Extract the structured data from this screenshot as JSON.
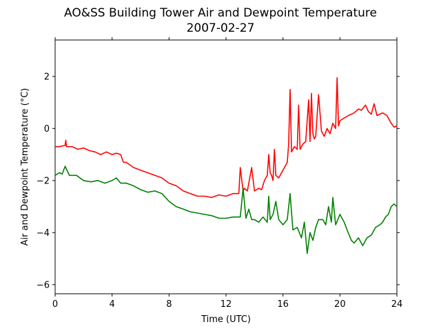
{
  "chart_data": {
    "type": "line",
    "title": "AO&SS Building Tower Air and Dewpoint Temperature",
    "subtitle": "2007-02-27",
    "xlabel": "Time (UTC)",
    "ylabel": "Air and Dewpoint Temperature (°C)",
    "xlim": [
      0,
      24
    ],
    "ylim": [
      -6.35,
      3.4
    ],
    "xticks": [
      0,
      4,
      8,
      12,
      16,
      20,
      24
    ],
    "yticks": [
      -6,
      -4,
      -2,
      0,
      2
    ],
    "ytick_labels": [
      "−6",
      "−4",
      "−2",
      "0",
      "2"
    ],
    "grid": false,
    "legend": "none",
    "series": [
      {
        "color": "#ff0000",
        "x": [
          0,
          0.3,
          0.7,
          0.75,
          0.8,
          1.2,
          1.6,
          2.0,
          2.4,
          2.8,
          3.2,
          3.6,
          4.0,
          4.3,
          4.6,
          4.8,
          5.0,
          5.5,
          6.0,
          6.5,
          7.0,
          7.5,
          8.0,
          8.5,
          9.0,
          9.5,
          10.0,
          10.5,
          11.0,
          11.5,
          12.0,
          12.5,
          12.9,
          13.0,
          13.2,
          13.3,
          13.5,
          13.8,
          14.0,
          14.3,
          14.5,
          14.7,
          14.9,
          15.0,
          15.1,
          15.2,
          15.3,
          15.4,
          15.5,
          15.7,
          16.0,
          16.3,
          16.4,
          16.5,
          16.6,
          16.8,
          17.0,
          17.1,
          17.2,
          17.4,
          17.6,
          17.8,
          17.9,
          18.0,
          18.1,
          18.2,
          18.3,
          18.5,
          18.7,
          18.9,
          19.1,
          19.3,
          19.5,
          19.7,
          19.8,
          19.9,
          20.0,
          20.3,
          20.6,
          21.0,
          21.3,
          21.5,
          21.8,
          22.0,
          22.2,
          22.4,
          22.6,
          22.8,
          23.0,
          23.3,
          23.6,
          23.8,
          24.0
        ],
        "y": [
          -0.7,
          -0.7,
          -0.65,
          -0.45,
          -0.7,
          -0.7,
          -0.8,
          -0.75,
          -0.85,
          -0.9,
          -1.0,
          -0.9,
          -1.0,
          -0.95,
          -1.0,
          -1.3,
          -1.3,
          -1.5,
          -1.6,
          -1.7,
          -1.8,
          -1.9,
          -2.1,
          -2.2,
          -2.4,
          -2.5,
          -2.6,
          -2.6,
          -2.65,
          -2.55,
          -2.6,
          -2.5,
          -2.5,
          -1.5,
          -2.4,
          -2.3,
          -2.4,
          -1.5,
          -2.4,
          -2.3,
          -2.35,
          -2.0,
          -1.8,
          -1.0,
          -1.7,
          -1.8,
          -2.0,
          -0.8,
          -1.8,
          -1.9,
          -1.6,
          -1.3,
          -0.6,
          1.5,
          -0.9,
          -0.7,
          -0.8,
          0.9,
          -0.8,
          -0.6,
          -0.5,
          1.1,
          -0.5,
          1.35,
          -0.2,
          -0.4,
          -0.3,
          1.3,
          -0.1,
          -0.3,
          0.0,
          -0.2,
          0.2,
          0.0,
          1.95,
          0.1,
          0.3,
          0.4,
          0.5,
          0.6,
          0.75,
          0.7,
          0.9,
          0.65,
          0.55,
          0.95,
          0.5,
          0.55,
          0.6,
          0.5,
          0.2,
          0.05,
          0.1
        ]
      },
      {
        "color": "#008000",
        "x": [
          0,
          0.3,
          0.5,
          0.7,
          1.0,
          1.5,
          2.0,
          2.5,
          3.0,
          3.5,
          4.0,
          4.3,
          4.6,
          5.0,
          5.5,
          6.0,
          6.5,
          7.0,
          7.5,
          8.0,
          8.5,
          9.0,
          9.5,
          10.0,
          10.5,
          11.0,
          11.5,
          12.0,
          12.5,
          13.0,
          13.2,
          13.4,
          13.6,
          13.8,
          14.0,
          14.3,
          14.6,
          14.9,
          15.0,
          15.1,
          15.3,
          15.5,
          15.7,
          16.0,
          16.3,
          16.5,
          16.7,
          17.0,
          17.3,
          17.5,
          17.7,
          17.9,
          18.1,
          18.3,
          18.5,
          18.8,
          19.0,
          19.2,
          19.4,
          19.5,
          19.7,
          20.0,
          20.3,
          20.5,
          20.8,
          21.0,
          21.3,
          21.6,
          21.9,
          22.2,
          22.5,
          22.8,
          23.0,
          23.2,
          23.4,
          23.6,
          23.8,
          24.0
        ],
        "y": [
          -1.8,
          -1.7,
          -1.75,
          -1.45,
          -1.8,
          -1.8,
          -2.0,
          -2.05,
          -2.0,
          -2.1,
          -2.0,
          -1.9,
          -2.1,
          -2.1,
          -2.2,
          -2.35,
          -2.45,
          -2.4,
          -2.5,
          -2.8,
          -3.0,
          -3.1,
          -3.2,
          -3.25,
          -3.3,
          -3.35,
          -3.45,
          -3.45,
          -3.4,
          -3.4,
          -2.3,
          -3.45,
          -3.1,
          -3.5,
          -3.5,
          -3.6,
          -3.4,
          -3.6,
          -2.6,
          -3.5,
          -3.3,
          -2.8,
          -3.5,
          -3.7,
          -3.5,
          -2.5,
          -3.9,
          -3.8,
          -4.2,
          -3.6,
          -4.8,
          -4.0,
          -4.3,
          -3.8,
          -3.5,
          -3.5,
          -3.7,
          -3.0,
          -3.6,
          -2.65,
          -3.7,
          -3.3,
          -3.6,
          -3.9,
          -4.3,
          -4.4,
          -4.2,
          -4.5,
          -4.2,
          -4.1,
          -3.8,
          -3.7,
          -3.6,
          -3.4,
          -3.3,
          -3.0,
          -2.9,
          -3.0
        ]
      }
    ]
  }
}
